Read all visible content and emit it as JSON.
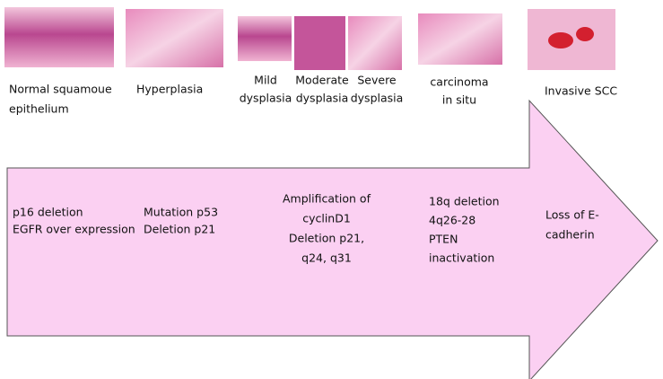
{
  "stages": [
    {
      "lines": [
        "Normal squamoue",
        "epithelium"
      ]
    },
    {
      "lines": [
        "Hyperplasia"
      ]
    },
    {
      "lines": [
        "Mild",
        "dysplasia"
      ]
    },
    {
      "lines": [
        "Moderate",
        "dysplasia"
      ]
    },
    {
      "lines": [
        "Severe",
        "dysplasia"
      ]
    },
    {
      "lines": [
        "carcinoma",
        "in situ"
      ]
    },
    {
      "lines": [
        "Invasive SCC"
      ]
    }
  ],
  "events": [
    {
      "lines": [
        "p16 deletion",
        "EGFR over expression"
      ]
    },
    {
      "lines": [
        "Mutation p53",
        "Deletion p21"
      ]
    },
    {
      "lines": [
        "Amplification of",
        "cyclinD1",
        "Deletion p21,",
        "q24, q31"
      ]
    },
    {
      "lines": [
        "18q deletion",
        "4q26-28",
        "PTEN",
        "inactivation"
      ]
    },
    {
      "lines": [
        "Loss of E-",
        "cadherin"
      ]
    }
  ]
}
